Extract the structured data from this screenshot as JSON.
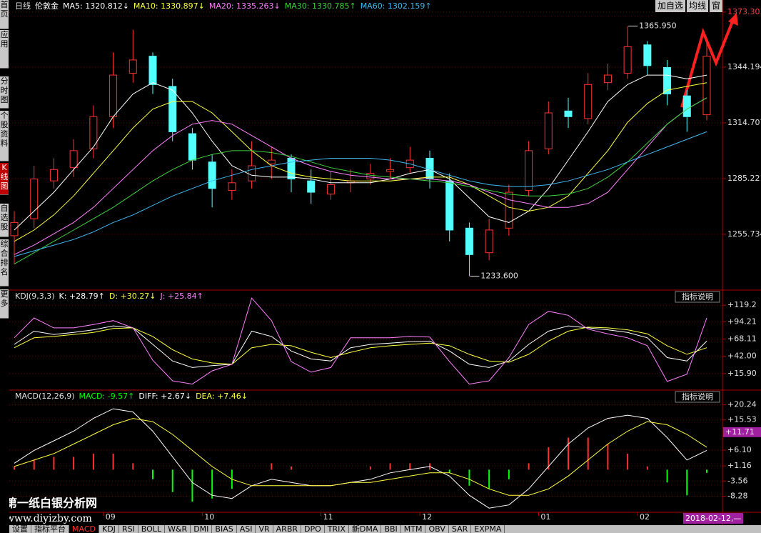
{
  "sidebar": [
    "首页",
    "应用",
    "分时图",
    "个股资料",
    "K线图",
    "自选股",
    "综合排名",
    "更多"
  ],
  "active_sidebar_index": 4,
  "toolbar": [
    "加自选",
    "均线",
    "窗"
  ],
  "tabs": [
    "设置",
    "指标平台",
    "MACD",
    "KDJ",
    "RSI",
    "BOLL",
    "W&R",
    "DMI",
    "BIAS",
    "ASI",
    "VR",
    "ARBR",
    "DPO",
    "TRIX",
    "新DMA",
    "BBI",
    "MTM",
    "OBV",
    "SAR",
    "EXPMA"
  ],
  "active_tab_index": 2,
  "watermark": {
    "title": "第一纸白银分析网",
    "url": "www.diyizby.com"
  },
  "date_label": "2018-02-12,—",
  "chart_data": [
    {
      "type": "candlestick",
      "title": "日线",
      "subtitle": "伦敦金",
      "categories": [
        null,
        null,
        null,
        null,
        null,
        "09",
        null,
        null,
        null,
        null,
        "10",
        null,
        null,
        null,
        null,
        null,
        "11",
        null,
        null,
        null,
        null,
        "12",
        null,
        null,
        null,
        null,
        null,
        "01",
        null,
        null,
        null,
        null,
        "02",
        null,
        null,
        null
      ],
      "open": [
        1255,
        1264,
        1284,
        1291,
        1301,
        1318,
        1341,
        1350,
        1334,
        1309,
        1294,
        1279,
        1284,
        1293,
        1296,
        1284,
        1277,
        1283,
        1285,
        1289,
        1291,
        1296,
        1284,
        1259,
        1246,
        1259,
        1279,
        1301,
        1321,
        1317,
        1336,
        1341,
        1356,
        1344,
        1329,
        1319
      ],
      "high": [
        1268,
        1292,
        1296,
        1306,
        1324,
        1352,
        1364,
        1352,
        1338,
        1312,
        1298,
        1290,
        1305,
        1302,
        1298,
        1290,
        1289,
        1290,
        1293,
        1296,
        1302,
        1300,
        1288,
        1262,
        1264,
        1282,
        1305,
        1326,
        1328,
        1341,
        1346,
        1365.95,
        1358,
        1348,
        1332,
        1357
      ],
      "low": [
        1240,
        1259,
        1280,
        1286,
        1296,
        1312,
        1336,
        1330,
        1305,
        1290,
        1270,
        1274,
        1280,
        1285,
        1278,
        1272,
        1274,
        1278,
        1282,
        1285,
        1288,
        1280,
        1252,
        1233.6,
        1242,
        1255,
        1276,
        1298,
        1312,
        1314,
        1332,
        1338,
        1340,
        1324,
        1310,
        1316
      ],
      "close": [
        1262,
        1285,
        1290,
        1300,
        1318,
        1340,
        1348,
        1335,
        1310,
        1295,
        1280,
        1283,
        1292,
        1295,
        1285,
        1278,
        1282,
        1284,
        1288,
        1290,
        1295,
        1285,
        1258,
        1245,
        1258,
        1278,
        1300,
        1320,
        1318,
        1335,
        1340,
        1355,
        1345,
        1330,
        1318,
        1350
      ],
      "up_color": "#ff3232",
      "down_color": "#54ffff",
      "series": [
        {
          "legend": "MA5: 1320.812↓",
          "color": "#ffffff",
          "values": [
            1258,
            1268,
            1278,
            1290,
            1302,
            1318,
            1330,
            1336,
            1332,
            1320,
            1305,
            1292,
            1287,
            1286,
            1286,
            1285,
            1283,
            1283,
            1283,
            1285,
            1288,
            1290,
            1285,
            1275,
            1265,
            1262,
            1268,
            1280,
            1295,
            1310,
            1326,
            1335,
            1340,
            1340,
            1338,
            1340
          ]
        },
        {
          "legend": "MA10: 1330.897↓",
          "color": "#ffff40",
          "values": [
            1252,
            1258,
            1266,
            1276,
            1288,
            1300,
            1312,
            1322,
            1326,
            1326,
            1320,
            1310,
            1300,
            1292,
            1288,
            1286,
            1285,
            1284,
            1284,
            1284,
            1285,
            1286,
            1286,
            1282,
            1276,
            1270,
            1268,
            1270,
            1276,
            1288,
            1300,
            1315,
            1325,
            1332,
            1334,
            1336
          ]
        },
        {
          "legend": "MA20: 1335.263↓",
          "color": "#ff80ff",
          "values": [
            1245,
            1250,
            1256,
            1262,
            1270,
            1280,
            1290,
            1300,
            1308,
            1314,
            1316,
            1314,
            1308,
            1302,
            1296,
            1292,
            1289,
            1287,
            1286,
            1285,
            1285,
            1285,
            1284,
            1282,
            1278,
            1274,
            1272,
            1270,
            1270,
            1272,
            1278,
            1290,
            1302,
            1314,
            1322,
            1328
          ]
        },
        {
          "legend": "MA30: 1330.785↑",
          "color": "#40d040",
          "values": [
            1240,
            1246,
            1252,
            1258,
            1264,
            1270,
            1277,
            1284,
            1290,
            1295,
            1298,
            1300,
            1300,
            1299,
            1297,
            1294,
            1291,
            1289,
            1287,
            1286,
            1285,
            1284,
            1283,
            1281,
            1279,
            1277,
            1276,
            1276,
            1277,
            1280,
            1286,
            1294,
            1304,
            1314,
            1322,
            1328
          ]
        },
        {
          "legend": "MA60: 1302.159↑",
          "color": "#40b8f0",
          "values": [
            1244,
            1247,
            1250,
            1253,
            1257,
            1262,
            1266,
            1271,
            1276,
            1280,
            1284,
            1287,
            1290,
            1292,
            1294,
            1295,
            1296,
            1296,
            1296,
            1295,
            1293,
            1290,
            1287,
            1284,
            1282,
            1281,
            1281,
            1282,
            1284,
            1287,
            1290,
            1294,
            1298,
            1302,
            1306,
            1310
          ]
        }
      ],
      "ylim": [
        1226.6,
        1373.303
      ],
      "yticks": [
        1373.303,
        1344.194,
        1314.707,
        1285.221,
        1255.734
      ],
      "annotations": [
        {
          "value": 1365.95,
          "label": "1365.950"
        },
        {
          "value": 1233.6,
          "label": "1233.600"
        }
      ],
      "grid": true
    },
    {
      "type": "line",
      "title": "KDJ(9,3,3)",
      "button": "指标说明",
      "series": [
        {
          "legend": "K: +28.79↑",
          "color": "#ffffff",
          "values": [
            60,
            80,
            75,
            78,
            82,
            88,
            85,
            60,
            35,
            25,
            28,
            30,
            80,
            72,
            50,
            38,
            35,
            55,
            60,
            62,
            64,
            65,
            50,
            30,
            25,
            35,
            60,
            80,
            88,
            85,
            82,
            78,
            70,
            40,
            35,
            65
          ]
        },
        {
          "legend": "D: +30.27↓",
          "color": "#ffff40",
          "values": [
            55,
            70,
            72,
            75,
            78,
            84,
            85,
            72,
            52,
            38,
            32,
            30,
            55,
            60,
            58,
            48,
            40,
            48,
            55,
            58,
            60,
            62,
            58,
            45,
            35,
            33,
            45,
            65,
            80,
            86,
            85,
            82,
            76,
            58,
            45,
            55
          ]
        },
        {
          "legend": "J: +25.84↑",
          "color": "#ff80ff",
          "values": [
            70,
            100,
            85,
            85,
            90,
            96,
            85,
            36,
            5,
            0,
            20,
            30,
            130,
            96,
            34,
            18,
            25,
            70,
            70,
            70,
            72,
            71,
            34,
            0,
            5,
            40,
            90,
            110,
            104,
            83,
            76,
            70,
            58,
            4,
            15,
            100
          ]
        }
      ],
      "ylim": [
        -8,
        141
      ],
      "yticks": [
        {
          "value": 119.2,
          "label": "+119.2"
        },
        {
          "value": 94.21,
          "label": "+94.21"
        },
        {
          "value": 68.11,
          "label": "+68.11"
        },
        {
          "value": 42,
          "label": "+42.00"
        },
        {
          "value": 15.9,
          "label": "+15.90"
        }
      ],
      "grid": true
    },
    {
      "type": "macd",
      "title": "MACD(12,26,9)",
      "button": "指标说明",
      "histogram": {
        "legend": "MACD: -9.57↑",
        "legend_color": "#00ff00",
        "up_color": "#ff3232",
        "down_color": "#00ff00",
        "values": [
          1,
          3,
          4,
          4,
          5,
          5,
          2,
          -3,
          -7,
          -10,
          -9,
          -6,
          0,
          2,
          1,
          0,
          0,
          0,
          1,
          2,
          2,
          2,
          -1,
          -5,
          -6,
          -3,
          2,
          7,
          10,
          10,
          8,
          5,
          1,
          -4,
          -8,
          -1
        ]
      },
      "series": [
        {
          "legend": "DIFF: +2.67↓",
          "color": "#ffffff",
          "values": [
            2,
            6,
            9,
            12,
            16,
            19,
            18,
            12,
            4,
            -4,
            -8,
            -9,
            -5,
            -3,
            -4,
            -5,
            -5,
            -4,
            -3,
            -1,
            0,
            1,
            -2,
            -8,
            -12,
            -11,
            -6,
            1,
            8,
            13,
            16,
            17,
            16,
            10,
            3,
            6
          ]
        },
        {
          "legend": "DEA: +7.46↓",
          "color": "#ffff40",
          "values": [
            1,
            3,
            5,
            8,
            11,
            14,
            16,
            15,
            11,
            6,
            1,
            -3,
            -5,
            -5,
            -5,
            -5,
            -5,
            -4,
            -4,
            -3,
            -2,
            -1,
            -1,
            -3,
            -6,
            -8,
            -8,
            -6,
            -2,
            3,
            8,
            12,
            15,
            14,
            11,
            7
          ]
        }
      ],
      "ylim": [
        -13.3,
        24.6
      ],
      "yticks": [
        {
          "value": 20.24,
          "label": "+20.24"
        },
        {
          "value": 15.53,
          "label": "+15.53"
        },
        {
          "value": 6.1,
          "label": "+6.10"
        },
        {
          "value": 1.16,
          "label": "+1.16"
        },
        -3.56,
        -8.28
      ],
      "current": {
        "value": 11.71,
        "label": "+11.71"
      },
      "grid": true
    }
  ]
}
